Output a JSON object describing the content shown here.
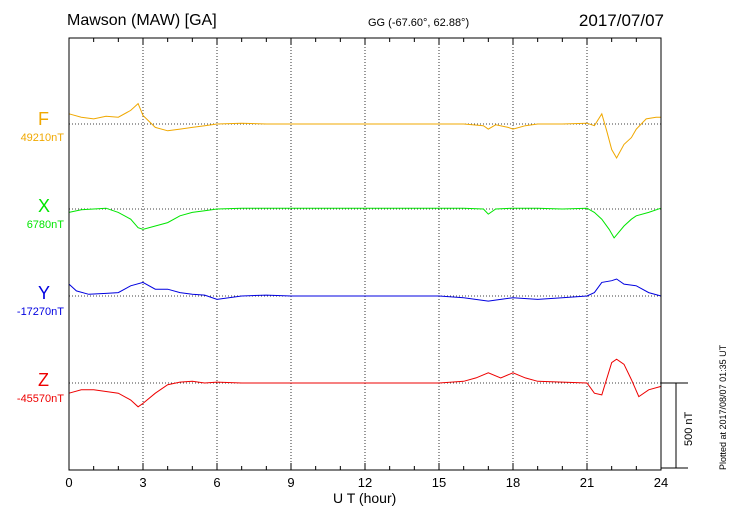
{
  "header": {
    "station": "Mawson (MAW)  [GA]",
    "coords": "GG (-67.60°,  62.88°)",
    "date": "2017/07/07"
  },
  "footnote": "Plotted at 2017/08/07 01:35 UT",
  "scale_label": "500 nT",
  "chart_data": {
    "type": "line",
    "xlabel": "U T (hour)",
    "xlim": [
      0,
      24
    ],
    "xticks": [
      0,
      3,
      6,
      9,
      12,
      15,
      18,
      21,
      24
    ],
    "xtick_labels": [
      "0",
      "3",
      "6",
      "9",
      "12",
      "15",
      "18",
      "21",
      "24"
    ],
    "grid": "vertical dotted lines every 3 h; dotted baseline per component",
    "scale_bar_nT": 500,
    "series": [
      {
        "name": "F",
        "baseline_label": "49210nT",
        "color": "#f0a800",
        "points": [
          [
            0,
            60
          ],
          [
            0.5,
            40
          ],
          [
            1,
            30
          ],
          [
            1.5,
            45
          ],
          [
            2,
            40
          ],
          [
            2.5,
            80
          ],
          [
            2.8,
            120
          ],
          [
            3,
            50
          ],
          [
            3.5,
            -20
          ],
          [
            4,
            -40
          ],
          [
            4.5,
            -30
          ],
          [
            5,
            -20
          ],
          [
            5.5,
            -10
          ],
          [
            6,
            0
          ],
          [
            7,
            5
          ],
          [
            8,
            0
          ],
          [
            9,
            0
          ],
          [
            10,
            0
          ],
          [
            11,
            0
          ],
          [
            12,
            0
          ],
          [
            13,
            0
          ],
          [
            14,
            0
          ],
          [
            15,
            0
          ],
          [
            16,
            0
          ],
          [
            16.8,
            -10
          ],
          [
            17,
            -30
          ],
          [
            17.3,
            -5
          ],
          [
            17.8,
            -20
          ],
          [
            18,
            -30
          ],
          [
            18.5,
            -10
          ],
          [
            19,
            0
          ],
          [
            20,
            0
          ],
          [
            21,
            5
          ],
          [
            21.3,
            -10
          ],
          [
            21.6,
            60
          ],
          [
            21.8,
            -40
          ],
          [
            22,
            -150
          ],
          [
            22.2,
            -200
          ],
          [
            22.5,
            -120
          ],
          [
            22.8,
            -80
          ],
          [
            23,
            -30
          ],
          [
            23.4,
            30
          ],
          [
            23.8,
            40
          ],
          [
            24,
            40
          ]
        ]
      },
      {
        "name": "X",
        "baseline_label": "6780nT",
        "color": "#00e600",
        "points": [
          [
            0,
            -20
          ],
          [
            0.5,
            -5
          ],
          [
            1,
            0
          ],
          [
            1.5,
            5
          ],
          [
            2,
            -20
          ],
          [
            2.5,
            -60
          ],
          [
            2.8,
            -110
          ],
          [
            3,
            -120
          ],
          [
            3.5,
            -100
          ],
          [
            4,
            -80
          ],
          [
            4.5,
            -40
          ],
          [
            5,
            -20
          ],
          [
            5.5,
            -10
          ],
          [
            6,
            0
          ],
          [
            7,
            5
          ],
          [
            8,
            5
          ],
          [
            9,
            5
          ],
          [
            10,
            5
          ],
          [
            11,
            5
          ],
          [
            12,
            5
          ],
          [
            13,
            5
          ],
          [
            14,
            5
          ],
          [
            15,
            5
          ],
          [
            16,
            5
          ],
          [
            16.8,
            0
          ],
          [
            17,
            -30
          ],
          [
            17.3,
            0
          ],
          [
            18,
            5
          ],
          [
            19,
            5
          ],
          [
            20,
            0
          ],
          [
            21,
            5
          ],
          [
            21.3,
            -20
          ],
          [
            21.6,
            -60
          ],
          [
            21.9,
            -120
          ],
          [
            22.1,
            -170
          ],
          [
            22.5,
            -100
          ],
          [
            22.8,
            -60
          ],
          [
            23,
            -40
          ],
          [
            23.5,
            -20
          ],
          [
            24,
            5
          ]
        ]
      },
      {
        "name": "Y",
        "baseline_label": "-17270nT",
        "color": "#0000e0",
        "points": [
          [
            0,
            70
          ],
          [
            0.3,
            30
          ],
          [
            0.8,
            10
          ],
          [
            1.5,
            15
          ],
          [
            2,
            20
          ],
          [
            2.5,
            60
          ],
          [
            3,
            80
          ],
          [
            3.5,
            40
          ],
          [
            4,
            40
          ],
          [
            4.5,
            20
          ],
          [
            5,
            10
          ],
          [
            5.5,
            5
          ],
          [
            6,
            -20
          ],
          [
            7,
            0
          ],
          [
            8,
            5
          ],
          [
            9,
            0
          ],
          [
            10,
            0
          ],
          [
            11,
            0
          ],
          [
            12,
            0
          ],
          [
            13,
            0
          ],
          [
            14,
            0
          ],
          [
            15,
            0
          ],
          [
            16,
            -10
          ],
          [
            17,
            -30
          ],
          [
            17.5,
            -20
          ],
          [
            18,
            -10
          ],
          [
            19,
            -20
          ],
          [
            20,
            -10
          ],
          [
            21,
            0
          ],
          [
            21.3,
            20
          ],
          [
            21.6,
            80
          ],
          [
            22,
            90
          ],
          [
            22.2,
            100
          ],
          [
            22.5,
            70
          ],
          [
            23,
            60
          ],
          [
            23.5,
            20
          ],
          [
            24,
            0
          ]
        ]
      },
      {
        "name": "Z",
        "baseline_label": "-45570nT",
        "color": "#ee0000",
        "points": [
          [
            0,
            -60
          ],
          [
            0.5,
            -40
          ],
          [
            1,
            -40
          ],
          [
            1.5,
            -50
          ],
          [
            2,
            -60
          ],
          [
            2.5,
            -100
          ],
          [
            2.8,
            -140
          ],
          [
            3,
            -120
          ],
          [
            3.5,
            -60
          ],
          [
            4,
            -10
          ],
          [
            4.5,
            5
          ],
          [
            5,
            10
          ],
          [
            5.5,
            0
          ],
          [
            6,
            5
          ],
          [
            7,
            0
          ],
          [
            8,
            0
          ],
          [
            9,
            0
          ],
          [
            10,
            0
          ],
          [
            11,
            0
          ],
          [
            12,
            0
          ],
          [
            13,
            0
          ],
          [
            14,
            0
          ],
          [
            15,
            0
          ],
          [
            16,
            10
          ],
          [
            16.5,
            30
          ],
          [
            17,
            60
          ],
          [
            17.5,
            30
          ],
          [
            18,
            60
          ],
          [
            18.5,
            30
          ],
          [
            19,
            10
          ],
          [
            20,
            5
          ],
          [
            21,
            0
          ],
          [
            21.3,
            -60
          ],
          [
            21.6,
            -70
          ],
          [
            22,
            120
          ],
          [
            22.2,
            140
          ],
          [
            22.5,
            110
          ],
          [
            22.8,
            20
          ],
          [
            23.1,
            -80
          ],
          [
            23.5,
            -40
          ],
          [
            24,
            -20
          ]
        ]
      }
    ]
  }
}
